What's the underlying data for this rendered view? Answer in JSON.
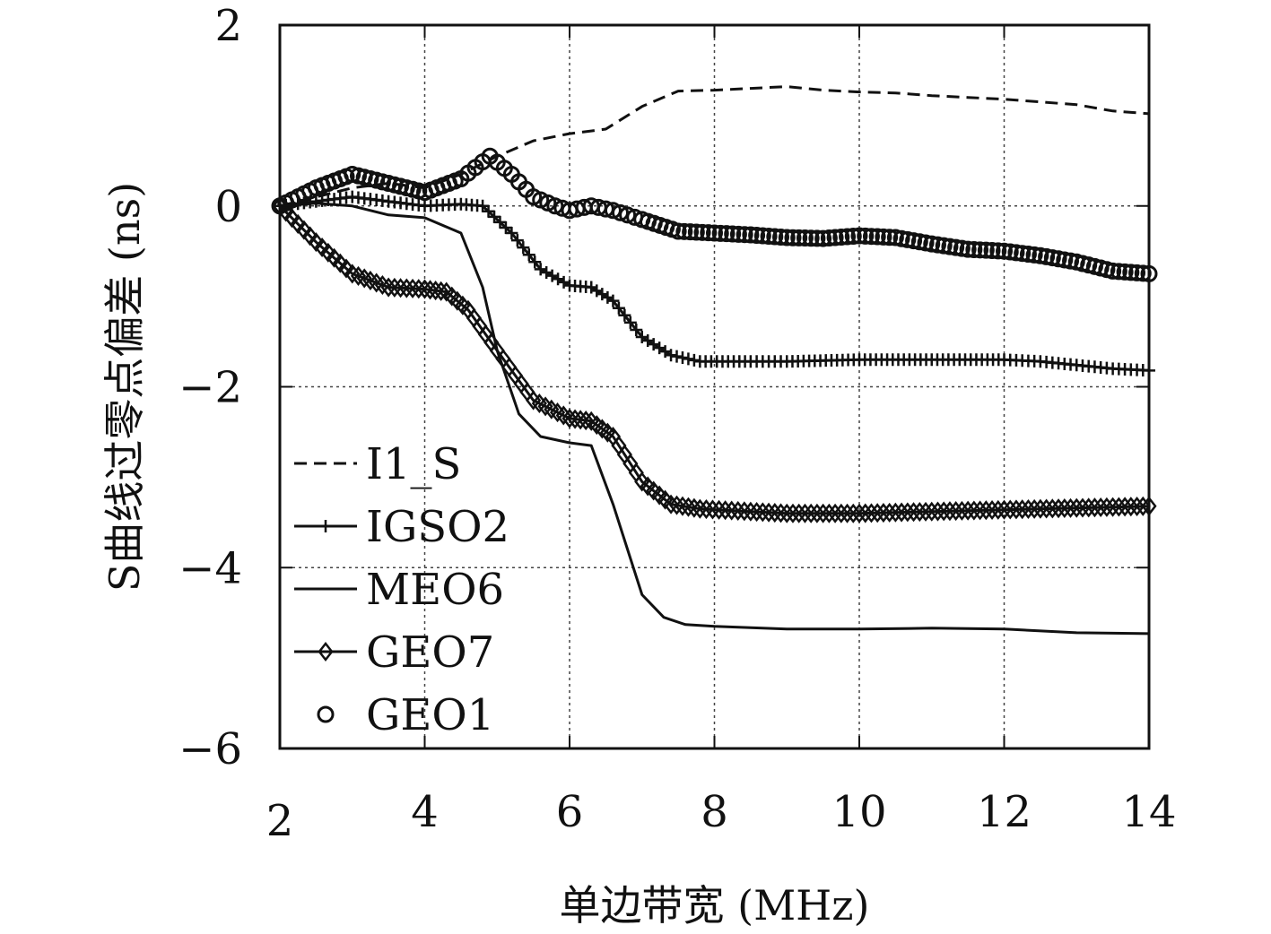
{
  "chart_data": {
    "type": "line",
    "title": "",
    "xlabel": "单边带宽 (MHz)",
    "ylabel": "S曲线过零点偏差 (ns)",
    "xlim": [
      2,
      14
    ],
    "ylim": [
      -6,
      2
    ],
    "xticks": [
      2,
      4,
      6,
      8,
      10,
      12,
      14
    ],
    "yticks": [
      2,
      0,
      -2,
      -4,
      -6
    ],
    "xtick_labels": [
      "2",
      "4",
      "6",
      "8",
      "10",
      "12",
      "14"
    ],
    "ytick_labels": [
      "2",
      "0",
      "−2",
      "−4",
      "−6"
    ],
    "grid": true,
    "grid_style": "dotted",
    "legend_position": "lower-left",
    "colors": {
      "line": "#111111",
      "grid": "#444444",
      "background": "#ffffff"
    },
    "series": [
      {
        "name": "I1_S",
        "style": "dashed",
        "marker": "none",
        "x": [
          2,
          2.5,
          3,
          3.5,
          4,
          4.5,
          5,
          5.5,
          6,
          6.5,
          7,
          7.5,
          8,
          8.5,
          9,
          9.5,
          10,
          10.5,
          11,
          11.5,
          12,
          12.5,
          13,
          13.5,
          14
        ],
        "y": [
          0,
          0.1,
          0.2,
          0.25,
          0.2,
          0.35,
          0.55,
          0.72,
          0.8,
          0.85,
          1.1,
          1.27,
          1.28,
          1.3,
          1.32,
          1.28,
          1.26,
          1.25,
          1.22,
          1.2,
          1.18,
          1.15,
          1.12,
          1.05,
          1.02
        ]
      },
      {
        "name": "IGSO2",
        "style": "solid",
        "marker": "plus",
        "x": [
          2,
          2.5,
          3,
          3.5,
          4,
          4.5,
          4.8,
          5.2,
          5.6,
          6.0,
          6.3,
          6.6,
          7.0,
          7.4,
          7.8,
          8.5,
          9,
          10,
          11,
          12,
          12.5,
          13,
          13.5,
          14
        ],
        "y": [
          0,
          0.05,
          0.1,
          0.05,
          0,
          0.02,
          0,
          -0.3,
          -0.7,
          -0.88,
          -0.9,
          -1.05,
          -1.45,
          -1.65,
          -1.72,
          -1.72,
          -1.72,
          -1.7,
          -1.7,
          -1.7,
          -1.72,
          -1.76,
          -1.8,
          -1.82
        ]
      },
      {
        "name": "MEO6",
        "style": "solid",
        "marker": "none",
        "x": [
          2,
          2.5,
          3,
          3.5,
          4,
          4.5,
          4.8,
          5.0,
          5.3,
          5.6,
          6.0,
          6.3,
          6.6,
          7.0,
          7.3,
          7.6,
          8,
          9,
          10,
          11,
          12,
          13,
          14
        ],
        "y": [
          0,
          0.03,
          0.0,
          -0.1,
          -0.13,
          -0.3,
          -0.9,
          -1.6,
          -2.3,
          -2.55,
          -2.62,
          -2.65,
          -3.3,
          -4.3,
          -4.55,
          -4.63,
          -4.65,
          -4.68,
          -4.68,
          -4.67,
          -4.68,
          -4.72,
          -4.73
        ]
      },
      {
        "name": "GEO7",
        "style": "solid",
        "marker": "diamond",
        "x": [
          2,
          2.5,
          3,
          3.5,
          4,
          4.3,
          4.6,
          5.0,
          5.5,
          6.0,
          6.3,
          6.6,
          7.0,
          7.4,
          7.8,
          8.5,
          9,
          10,
          11,
          12,
          13,
          13.5,
          14
        ],
        "y": [
          0,
          -0.4,
          -0.75,
          -0.9,
          -0.92,
          -0.95,
          -1.15,
          -1.6,
          -2.15,
          -2.35,
          -2.38,
          -2.55,
          -3.05,
          -3.3,
          -3.35,
          -3.38,
          -3.4,
          -3.4,
          -3.38,
          -3.36,
          -3.34,
          -3.33,
          -3.32
        ]
      },
      {
        "name": "GEO1",
        "style": "none",
        "marker": "circle",
        "x": [
          2,
          2.5,
          3,
          3.5,
          4,
          4.5,
          4.9,
          5.2,
          5.5,
          5.8,
          6.0,
          6.3,
          6.6,
          7.0,
          7.5,
          8,
          8.5,
          9,
          9.5,
          10,
          10.5,
          11,
          11.5,
          12,
          12.5,
          13,
          13.5,
          14
        ],
        "y": [
          0,
          0.2,
          0.35,
          0.25,
          0.15,
          0.3,
          0.55,
          0.35,
          0.1,
          0.0,
          -0.05,
          0.0,
          -0.05,
          -0.15,
          -0.28,
          -0.3,
          -0.32,
          -0.35,
          -0.36,
          -0.33,
          -0.35,
          -0.42,
          -0.48,
          -0.5,
          -0.55,
          -0.62,
          -0.72,
          -0.75
        ]
      }
    ]
  }
}
